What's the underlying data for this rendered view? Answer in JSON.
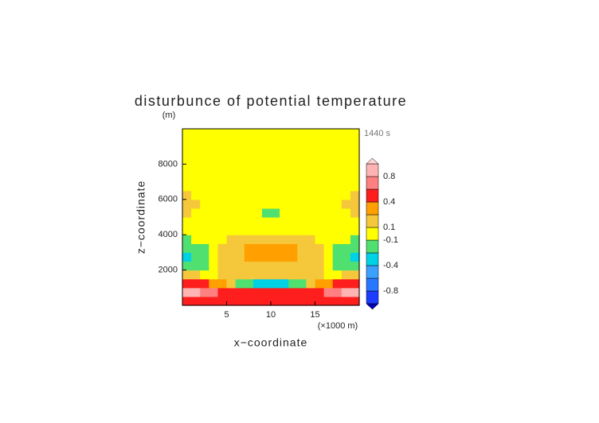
{
  "chart_data": {
    "type": "contour",
    "title": "disturbunce of potential temperature",
    "y_unit": "(m)",
    "time_label": "1440 s",
    "xlabel": "x−coordinate",
    "ylabel": "z−coordinate",
    "x_unit": "(×1000 m)",
    "xlim": [
      0,
      20
    ],
    "xticks": [
      5,
      10,
      15
    ],
    "ylim": [
      0,
      10000
    ],
    "yticks": [
      2000,
      4000,
      6000,
      8000
    ],
    "x": [
      0.5,
      1.5,
      2.5,
      3.5,
      4.5,
      5.5,
      6.5,
      7.5,
      8.5,
      9.5,
      10.5,
      11.5,
      12.5,
      13.5,
      14.5,
      15.5,
      16.5,
      17.5,
      18.5,
      19.5
    ],
    "y": [
      250,
      750,
      1250,
      1750,
      2250,
      2750,
      3250,
      3750,
      4250,
      4750,
      5250,
      5750,
      6250,
      6750,
      7250,
      7750,
      8250,
      8750,
      9250,
      9750
    ],
    "z": [
      [
        0.5,
        0.5,
        0.5,
        0.5,
        0.5,
        0.5,
        0.5,
        0.5,
        0.5,
        0.5,
        0.5,
        0.5,
        0.5,
        0.5,
        0.5,
        0.5,
        0.5,
        0.5,
        0.5,
        0.5
      ],
      [
        0.9,
        0.85,
        0.75,
        0.6,
        0.5,
        0.45,
        0.45,
        0.45,
        0.45,
        0.45,
        0.45,
        0.45,
        0.45,
        0.45,
        0.45,
        0.5,
        0.6,
        0.75,
        0.85,
        0.9
      ],
      [
        0.45,
        0.45,
        0.4,
        0.3,
        0.2,
        0.15,
        -0.12,
        -0.15,
        -0.25,
        -0.25,
        -0.25,
        -0.25,
        -0.15,
        -0.12,
        0.15,
        0.2,
        0.3,
        0.4,
        0.45,
        0.45
      ],
      [
        0.15,
        0.12,
        0.08,
        0.05,
        0.12,
        0.15,
        0.15,
        0.15,
        0.15,
        0.15,
        0.15,
        0.15,
        0.15,
        0.15,
        0.15,
        0.12,
        0.05,
        0.08,
        0.12,
        0.15
      ],
      [
        -0.15,
        -0.12,
        -0.11,
        0.05,
        0.13,
        0.15,
        0.15,
        0.15,
        0.18,
        0.18,
        0.18,
        0.18,
        0.15,
        0.15,
        0.15,
        0.13,
        0.05,
        -0.11,
        -0.12,
        -0.15
      ],
      [
        -0.25,
        -0.15,
        -0.12,
        0.05,
        0.13,
        0.15,
        0.15,
        0.25,
        0.3,
        0.3,
        0.3,
        0.3,
        0.25,
        0.15,
        0.15,
        0.13,
        0.05,
        -0.12,
        -0.15,
        -0.25
      ],
      [
        -0.15,
        -0.13,
        -0.11,
        0.05,
        0.13,
        0.15,
        0.15,
        0.22,
        0.25,
        0.25,
        0.25,
        0.25,
        0.22,
        0.15,
        0.15,
        0.13,
        0.05,
        -0.11,
        -0.13,
        -0.15
      ],
      [
        -0.11,
        0.05,
        0.05,
        0.05,
        0.05,
        0.12,
        0.13,
        0.15,
        0.15,
        0.15,
        0.15,
        0.15,
        0.15,
        0.13,
        0.12,
        0.05,
        0.05,
        0.05,
        0.05,
        -0.11
      ],
      [
        0.05,
        0.05,
        0.05,
        0.05,
        0.05,
        0.05,
        0.05,
        0.05,
        0.05,
        0.05,
        0.05,
        0.05,
        0.05,
        0.05,
        0.05,
        0.05,
        0.05,
        0.05,
        0.05,
        0.05
      ],
      [
        0.05,
        0.05,
        0.05,
        0.05,
        0.05,
        0.05,
        0.05,
        0.05,
        0.05,
        0.05,
        0.05,
        0.05,
        0.05,
        0.05,
        0.05,
        0.05,
        0.05,
        0.05,
        0.05,
        0.05
      ],
      [
        0.15,
        0.05,
        0.05,
        0.05,
        0.05,
        0.05,
        0.05,
        0.05,
        0.05,
        -0.12,
        -0.12,
        0.05,
        0.05,
        0.05,
        0.05,
        0.05,
        0.05,
        0.05,
        0.05,
        0.15
      ],
      [
        0.15,
        0.12,
        0.05,
        0.05,
        0.05,
        0.05,
        0.05,
        0.05,
        0.05,
        0.05,
        0.05,
        0.05,
        0.05,
        0.05,
        0.05,
        0.05,
        0.05,
        0.05,
        0.12,
        0.15
      ],
      [
        0.15,
        0.05,
        0.05,
        0.05,
        0.05,
        0.05,
        0.05,
        0.05,
        0.05,
        0.05,
        0.05,
        0.05,
        0.05,
        0.05,
        0.05,
        0.05,
        0.05,
        0.05,
        0.05,
        0.15
      ],
      [
        0.05,
        0.05,
        0.05,
        0.05,
        0.05,
        0.05,
        0.05,
        0.05,
        0.05,
        0.05,
        0.05,
        0.05,
        0.05,
        0.05,
        0.05,
        0.05,
        0.05,
        0.05,
        0.05,
        0.05
      ],
      [
        0.05,
        0.05,
        0.05,
        0.05,
        0.05,
        0.05,
        0.05,
        0.05,
        0.05,
        0.05,
        0.05,
        0.05,
        0.05,
        0.05,
        0.05,
        0.05,
        0.05,
        0.05,
        0.05,
        0.05
      ],
      [
        0.05,
        0.05,
        0.05,
        0.05,
        0.05,
        0.05,
        0.05,
        0.05,
        0.05,
        0.05,
        0.05,
        0.05,
        0.05,
        0.05,
        0.05,
        0.05,
        0.05,
        0.05,
        0.05,
        0.05
      ],
      [
        0.05,
        0.05,
        0.05,
        0.05,
        0.05,
        0.05,
        0.05,
        0.05,
        0.05,
        0.05,
        0.05,
        0.05,
        0.05,
        0.05,
        0.05,
        0.05,
        0.05,
        0.05,
        0.05,
        0.05
      ],
      [
        0.05,
        0.05,
        0.05,
        0.05,
        0.05,
        0.05,
        0.05,
        0.05,
        0.05,
        0.05,
        0.05,
        0.05,
        0.05,
        0.05,
        0.05,
        0.05,
        0.05,
        0.05,
        0.05,
        0.05
      ],
      [
        0.05,
        0.05,
        0.05,
        0.05,
        0.05,
        0.05,
        0.05,
        0.05,
        0.05,
        0.05,
        0.05,
        0.05,
        0.05,
        0.05,
        0.05,
        0.05,
        0.05,
        0.05,
        0.05,
        0.05
      ],
      [
        0.05,
        0.05,
        0.05,
        0.05,
        0.05,
        0.05,
        0.05,
        0.05,
        0.05,
        0.05,
        0.05,
        0.05,
        0.05,
        0.05,
        0.05,
        0.05,
        0.05,
        0.05,
        0.05,
        0.05
      ]
    ],
    "colorbar": {
      "levels": [
        -1,
        -0.8,
        -0.6,
        -0.4,
        -0.2,
        -0.1,
        0.1,
        0.2,
        0.4,
        0.6,
        0.8,
        1
      ],
      "colors": [
        "#0000b4",
        "#1e3cff",
        "#2878ff",
        "#3ca0ff",
        "#00d2e6",
        "#50e070",
        "#ffff00",
        "#f5c83c",
        "#ffa000",
        "#ff1e1e",
        "#ff8080",
        "#ffb4b4",
        "#ffd6d6"
      ],
      "ticks": [
        -0.8,
        -0.4,
        -0.1,
        0.1,
        0.4,
        0.8
      ]
    }
  }
}
